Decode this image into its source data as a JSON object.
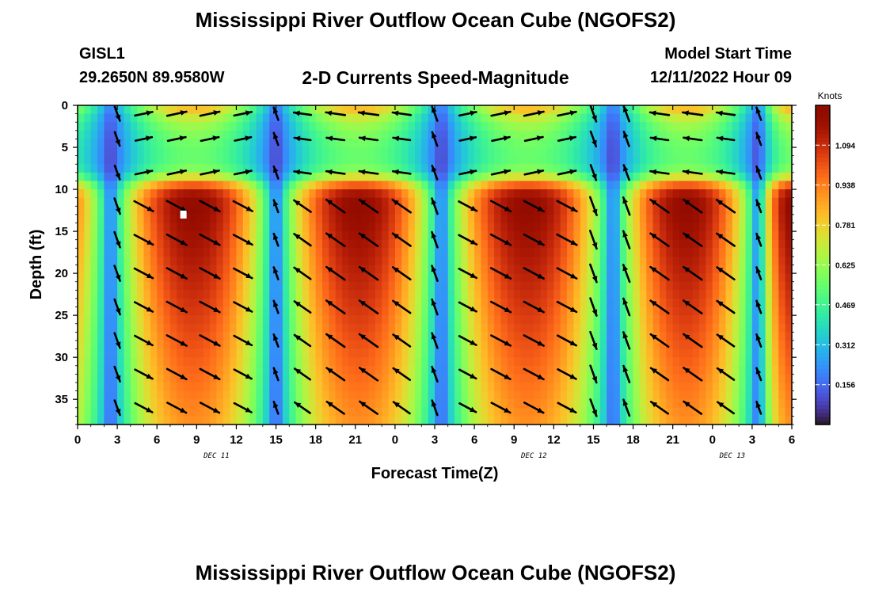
{
  "header": {
    "title": "Mississippi River Outflow Ocean Cube (NGOFS2)",
    "station": "GISL1",
    "coords": "29.2650N  89.9580W",
    "subtitle": "2-D Currents Speed-Magnitude",
    "model_start_label": "Model Start Time",
    "model_start_value": "12/11/2022 Hour 09"
  },
  "footer": {
    "title": "Mississippi River Outflow Ocean Cube (NGOFS2)"
  },
  "chart_data": {
    "type": "heatmap",
    "xlabel": "Forecast Time(Z)",
    "ylabel": "Depth (ft)",
    "x_tick_labels": [
      "0",
      "3",
      "6",
      "9",
      "12",
      "15",
      "18",
      "21",
      "0",
      "3",
      "6",
      "9",
      "12",
      "15",
      "18",
      "21",
      "0",
      "3",
      "6"
    ],
    "x_range_hours": [
      0,
      54
    ],
    "date_labels": [
      {
        "text": "DEC 11",
        "hour": 10.5
      },
      {
        "text": "DEC 12",
        "hour": 34.5
      },
      {
        "text": "DEC 13",
        "hour": 49.5
      }
    ],
    "y_ticks": [
      0,
      5,
      10,
      15,
      20,
      25,
      30,
      35
    ],
    "y_range": [
      0,
      38
    ],
    "y_reversed": true,
    "colorbar": {
      "label": "Knots",
      "ticks": [
        0.156,
        0.312,
        0.469,
        0.625,
        0.781,
        0.938,
        1.094
      ],
      "tick_labels": [
        "0.156",
        "0.312",
        "0.469",
        "0.625",
        "0.781",
        "0.938",
        "1.094"
      ],
      "range": [
        0,
        1.25
      ],
      "colormap": "turbo"
    },
    "speed_field": {
      "min_hours": [
        2.5,
        15,
        27.5,
        40.5,
        51.5
      ],
      "max_hours": [
        8.5,
        21,
        33.5,
        46,
        54
      ],
      "surface_layer_depth_ft": 9,
      "deep_peak_knots": 1.2
    },
    "vector_columns_hours": [
      3,
      5,
      7.5,
      10,
      12.5,
      15,
      17,
      19.5,
      22,
      24.5,
      27,
      29.5,
      32,
      34.5,
      37,
      39,
      41.5,
      44,
      46.5,
      49,
      51.5
    ],
    "vector_rows_ft": [
      1,
      4,
      8,
      12,
      16,
      20,
      24,
      28,
      32,
      36
    ],
    "marker": {
      "hour": 8,
      "depth": 13,
      "color": "#ffffff"
    }
  }
}
